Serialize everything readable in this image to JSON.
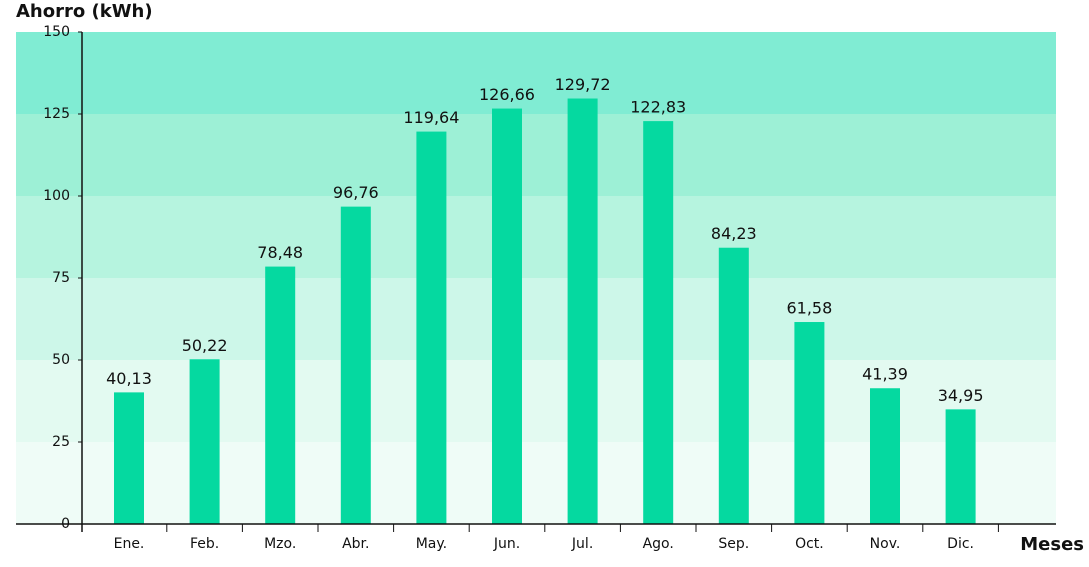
{
  "chart_data": {
    "type": "bar",
    "y_label": "Ahorro (kWh)",
    "x_label": "Meses",
    "categories": [
      "Ene.",
      "Feb.",
      "Mzo.",
      "Abr.",
      "May.",
      "Jun.",
      "Jul.",
      "Ago.",
      "Sep.",
      "Oct.",
      "Nov.",
      "Dic."
    ],
    "values": [
      40.13,
      50.22,
      78.48,
      96.76,
      119.64,
      126.66,
      129.72,
      122.83,
      84.23,
      61.58,
      41.39,
      34.95
    ],
    "value_labels": [
      "40,13",
      "50,22",
      "78,48",
      "96,76",
      "119,64",
      "126,66",
      "129,72",
      "122,83",
      "84,23",
      "61,58",
      "41,39",
      "34,95"
    ],
    "color": "#05d9a0",
    "band_colors": [
      "#effcf7",
      "#e3faf1",
      "#cdf7e9",
      "#b6f4df",
      "#9df0d6",
      "#80ecd3"
    ],
    "ylim": [
      0,
      150
    ],
    "yticks": [
      0,
      25,
      50,
      75,
      100,
      125,
      150
    ]
  }
}
